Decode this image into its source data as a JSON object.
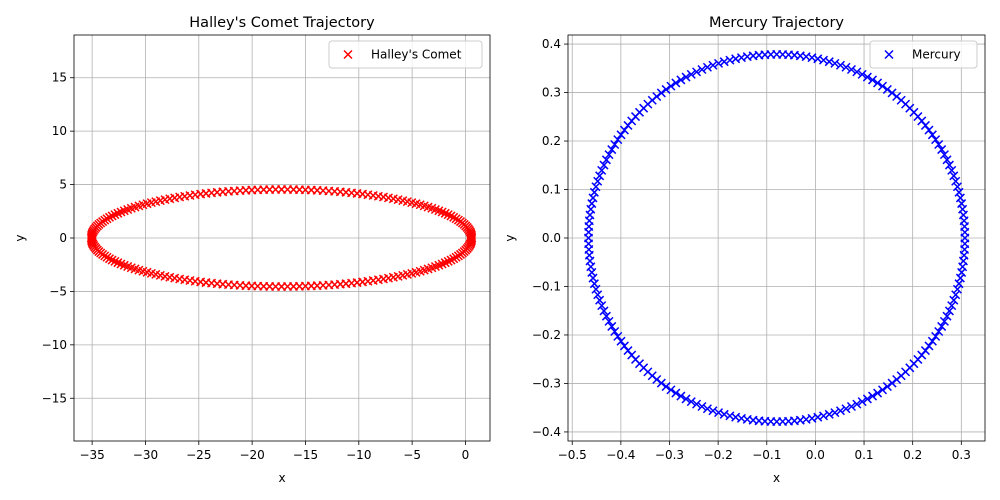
{
  "chart_data": [
    {
      "type": "scatter",
      "title": "Halley's Comet Trajectory",
      "xlabel": "x",
      "ylabel": "y",
      "xlim": [
        -36.7,
        2.3
      ],
      "ylim": [
        -19,
        19
      ],
      "xticks": [
        -35,
        -30,
        -25,
        -20,
        -15,
        -10,
        -5,
        0
      ],
      "yticks": [
        -15,
        -10,
        -5,
        0,
        5,
        10,
        15
      ],
      "grid": true,
      "legend_position": "top-right",
      "marker": "x",
      "series": [
        {
          "name": "Halley's Comet",
          "color": "#ff0000",
          "orbit": {
            "semi_major_axis": 17.83,
            "eccentricity": 0.967,
            "points": 200
          }
        }
      ]
    },
    {
      "type": "scatter",
      "title": "Mercury Trajectory",
      "xlabel": "x",
      "ylabel": "y",
      "xlim": [
        -0.5087,
        0.3487
      ],
      "ylim": [
        -0.4187,
        0.4187
      ],
      "xticks": [
        -0.5,
        -0.4,
        -0.3,
        -0.2,
        -0.1,
        0.0,
        0.1,
        0.2,
        0.3
      ],
      "yticks": [
        -0.4,
        -0.3,
        -0.2,
        -0.1,
        0.0,
        0.1,
        0.2,
        0.3,
        0.4
      ],
      "grid": true,
      "legend_position": "top-right",
      "marker": "x",
      "series": [
        {
          "name": "Mercury",
          "color": "#0000ff",
          "orbit": {
            "semi_major_axis": 0.387,
            "eccentricity": 0.2056,
            "points": 200
          }
        }
      ]
    }
  ]
}
